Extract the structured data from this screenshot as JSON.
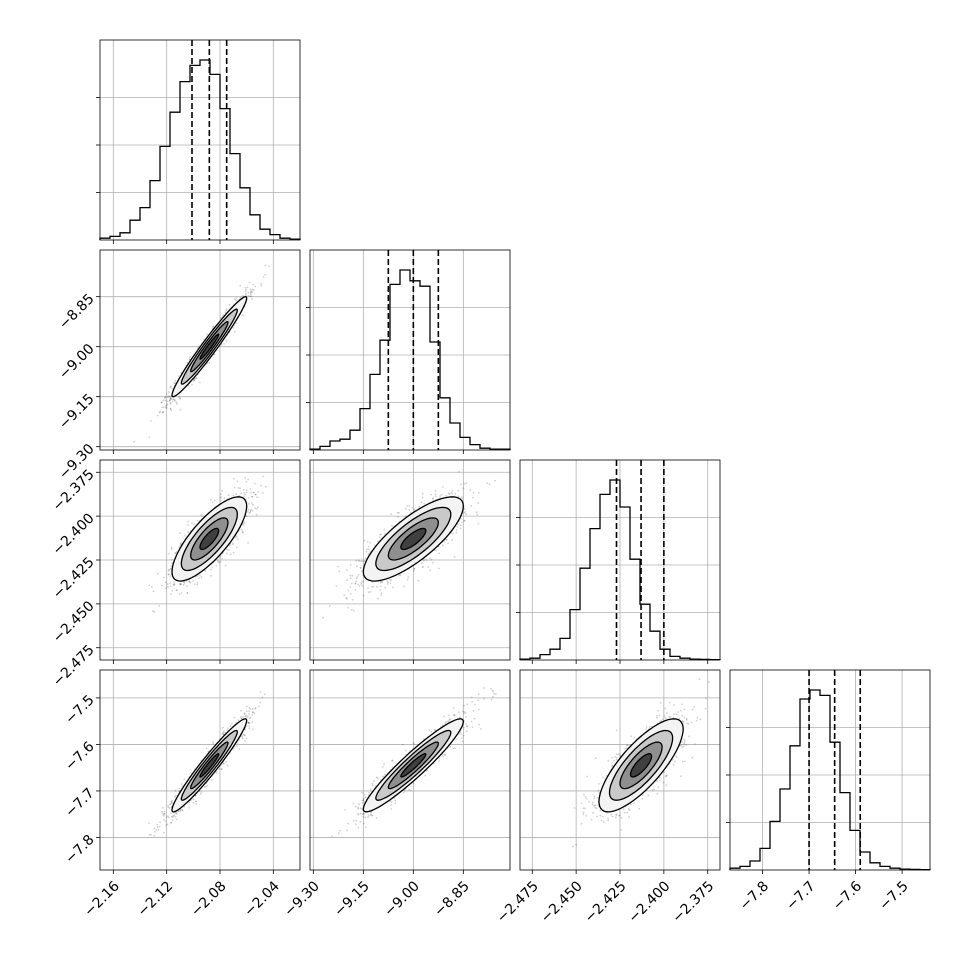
{
  "chart_data": {
    "type": "corner",
    "grid": true,
    "colors": {
      "line": "#000000",
      "grid": "#b0b0b0",
      "scatter": "#000000"
    },
    "parameters": [
      {
        "range": [
          -2.17,
          -2.02
        ],
        "ticks": [
          -2.16,
          -2.12,
          -2.08,
          -2.04
        ],
        "tick_labels": [
          "−2.16",
          "−2.12",
          "−2.08",
          "−2.04"
        ],
        "quantiles": [
          -2.101,
          -2.088,
          -2.075
        ],
        "histogram": [
          0.01,
          0.02,
          0.04,
          0.11,
          0.18,
          0.33,
          0.52,
          0.71,
          0.88,
          0.97,
          1.0,
          0.92,
          0.73,
          0.48,
          0.29,
          0.14,
          0.06,
          0.03,
          0.01,
          0.005
        ]
      },
      {
        "range": [
          -9.31,
          -8.71
        ],
        "ticks": [
          -9.3,
          -9.15,
          -9.0,
          -8.85
        ],
        "tick_labels": [
          "−9.30",
          "−9.15",
          "−9.00",
          "−8.85"
        ],
        "quantiles": [
          -9.075,
          -9.0,
          -8.925
        ],
        "histogram": [
          0.005,
          0.02,
          0.05,
          0.06,
          0.11,
          0.23,
          0.42,
          0.61,
          0.92,
          1.0,
          0.94,
          0.91,
          0.6,
          0.29,
          0.15,
          0.07,
          0.03,
          0.01,
          0.005,
          0.005
        ]
      },
      {
        "range": [
          -2.482,
          -2.368
        ],
        "ticks": [
          -2.475,
          -2.45,
          -2.425,
          -2.4,
          -2.375
        ],
        "tick_labels": [
          "−2.475",
          "−2.450",
          "−2.425",
          "−2.400",
          "−2.375"
        ],
        "x_tick_labels": [
          "−2.475",
          "−2.450",
          "−2.425",
          "−2.400",
          "−2.375"
        ],
        "y_tick_labels": [
          "−2.475",
          "−2.450",
          "−2.425",
          "−2.400",
          "−2.375"
        ],
        "quantiles": [
          -2.427,
          -2.413,
          -2.4
        ],
        "histogram": [
          0.005,
          0.01,
          0.03,
          0.06,
          0.12,
          0.28,
          0.51,
          0.73,
          0.92,
          1.0,
          0.85,
          0.56,
          0.31,
          0.16,
          0.06,
          0.02,
          0.01,
          0.005,
          0.003,
          0.002
        ]
      },
      {
        "range": [
          -7.87,
          -7.44
        ],
        "ticks": [
          -7.8,
          -7.7,
          -7.6,
          -7.5
        ],
        "tick_labels": [
          "−7.8",
          "−7.7",
          "−7.6",
          "−7.5"
        ],
        "quantiles": [
          -7.7,
          -7.645,
          -7.59
        ],
        "histogram": [
          0.01,
          0.02,
          0.05,
          0.12,
          0.27,
          0.45,
          0.69,
          0.95,
          1.0,
          0.97,
          0.71,
          0.43,
          0.22,
          0.1,
          0.04,
          0.02,
          0.01,
          0.005,
          0.003,
          0.002
        ]
      }
    ],
    "pairs": [
      {
        "x": 0,
        "y": 1,
        "mean": [
          -2.088,
          -9.0
        ],
        "sd": [
          0.014,
          0.075
        ],
        "rho": 0.97
      },
      {
        "x": 0,
        "y": 2,
        "mean": [
          -2.088,
          -2.413
        ],
        "sd": [
          0.014,
          0.012
        ],
        "rho": 0.78
      },
      {
        "x": 1,
        "y": 2,
        "mean": [
          -9.0,
          -2.413
        ],
        "sd": [
          0.075,
          0.012
        ],
        "rho": 0.78
      },
      {
        "x": 0,
        "y": 3,
        "mean": [
          -2.088,
          -7.645
        ],
        "sd": [
          0.014,
          0.05
        ],
        "rho": 0.96
      },
      {
        "x": 1,
        "y": 3,
        "mean": [
          -9.0,
          -7.645
        ],
        "sd": [
          0.075,
          0.05
        ],
        "rho": 0.94
      },
      {
        "x": 2,
        "y": 3,
        "mean": [
          -2.413,
          -7.645
        ],
        "sd": [
          0.012,
          0.05
        ],
        "rho": 0.78
      }
    ]
  }
}
